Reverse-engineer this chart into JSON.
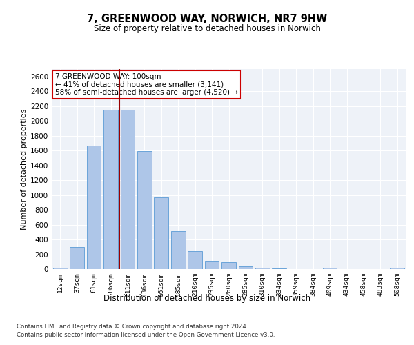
{
  "title": "7, GREENWOOD WAY, NORWICH, NR7 9HW",
  "subtitle": "Size of property relative to detached houses in Norwich",
  "xlabel": "Distribution of detached houses by size in Norwich",
  "ylabel": "Number of detached properties",
  "categories": [
    "12sqm",
    "37sqm",
    "61sqm",
    "86sqm",
    "111sqm",
    "136sqm",
    "161sqm",
    "185sqm",
    "210sqm",
    "235sqm",
    "260sqm",
    "285sqm",
    "310sqm",
    "334sqm",
    "359sqm",
    "384sqm",
    "409sqm",
    "434sqm",
    "458sqm",
    "483sqm",
    "508sqm"
  ],
  "values": [
    20,
    300,
    1670,
    2150,
    2150,
    1590,
    970,
    510,
    245,
    115,
    95,
    40,
    15,
    8,
    4,
    2,
    18,
    2,
    0,
    0,
    20
  ],
  "bar_color": "#aec6e8",
  "bar_edge_color": "#5b9bd5",
  "vline_x": 3.5,
  "vline_color": "#990000",
  "annotation_text": "7 GREENWOOD WAY: 100sqm\n← 41% of detached houses are smaller (3,141)\n58% of semi-detached houses are larger (4,520) →",
  "annotation_bbox_color": "#ffffff",
  "annotation_bbox_edge": "#cc0000",
  "ylim": [
    0,
    2700
  ],
  "yticks": [
    0,
    200,
    400,
    600,
    800,
    1000,
    1200,
    1400,
    1600,
    1800,
    2000,
    2200,
    2400,
    2600
  ],
  "background_color": "#eef2f8",
  "grid_color": "#ffffff",
  "footer_line1": "Contains HM Land Registry data © Crown copyright and database right 2024.",
  "footer_line2": "Contains public sector information licensed under the Open Government Licence v3.0."
}
